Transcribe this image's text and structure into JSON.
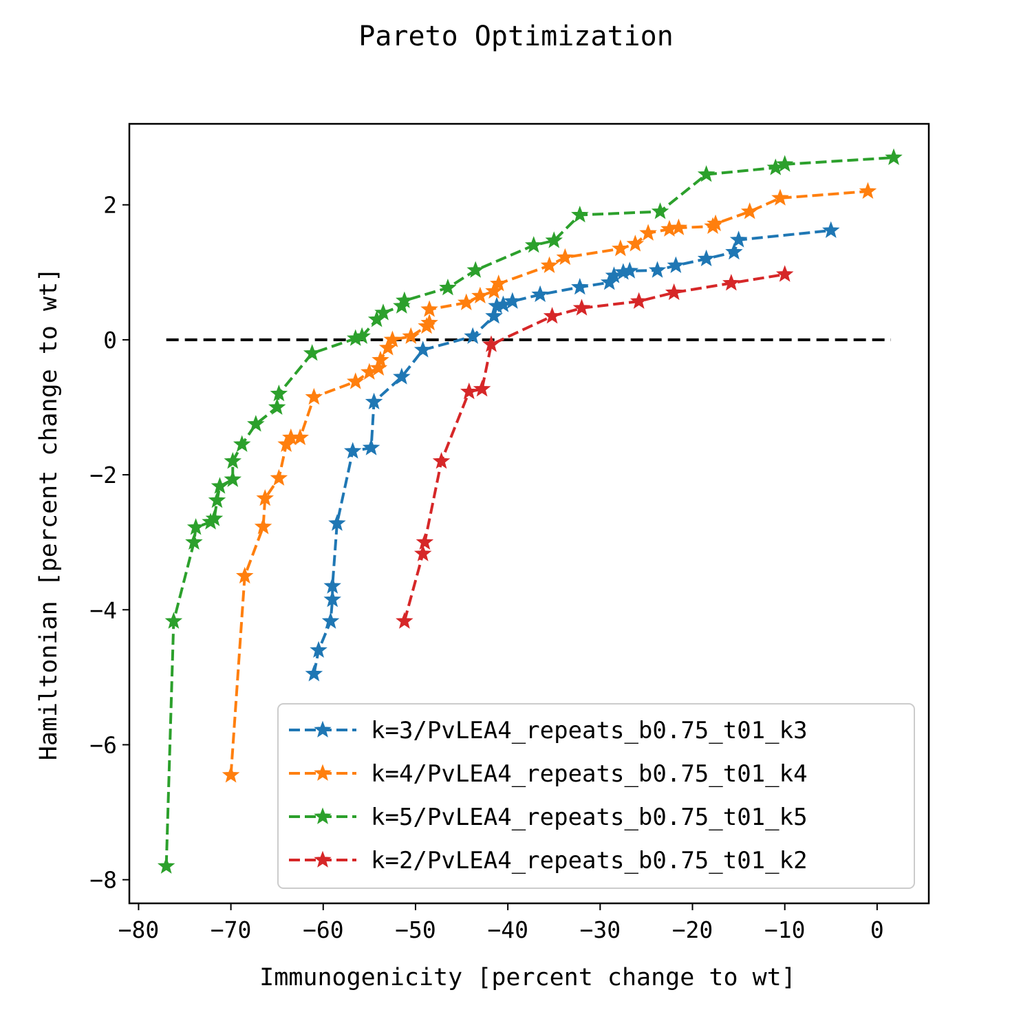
{
  "chart_data": {
    "type": "line",
    "title": "Pareto Optimization",
    "xlabel": "Immunogenicity [percent change to wt]",
    "ylabel": "Hamiltonian [percent change to wt]",
    "xlim": [
      -81,
      5.6
    ],
    "ylim": [
      -8.35,
      3.2
    ],
    "xticks": [
      -80,
      -70,
      -60,
      -50,
      -40,
      -30,
      -20,
      -10,
      0
    ],
    "yticks": [
      -8,
      -6,
      -4,
      -2,
      0,
      2
    ],
    "xtick_labels": [
      "−80",
      "−70",
      "−60",
      "−50",
      "−40",
      "−30",
      "−20",
      "−10",
      "0"
    ],
    "ytick_labels": [
      "−8",
      "−6",
      "−4",
      "−2",
      "0",
      "2"
    ],
    "grid": false,
    "legend_position": "lower-right",
    "reference_line": {
      "y": 0,
      "x_from": -77,
      "x_to": 1.5,
      "color": "#000000",
      "style": "dashed"
    },
    "series": [
      {
        "name": "k=3/PvLEA4_repeats_b0.75_t01_k3",
        "color": "#1f77b4",
        "points": [
          [
            -61.0,
            -4.95
          ],
          [
            -60.5,
            -4.6
          ],
          [
            -59.2,
            -4.17
          ],
          [
            -59.0,
            -3.85
          ],
          [
            -59.0,
            -3.65
          ],
          [
            -58.5,
            -2.72
          ],
          [
            -56.8,
            -1.65
          ],
          [
            -54.8,
            -1.6
          ],
          [
            -54.5,
            -0.92
          ],
          [
            -51.5,
            -0.55
          ],
          [
            -49.2,
            -0.15
          ],
          [
            -43.8,
            0.05
          ],
          [
            -41.5,
            0.35
          ],
          [
            -41.2,
            0.5
          ],
          [
            -40.5,
            0.52
          ],
          [
            -39.5,
            0.57
          ],
          [
            -36.5,
            0.67
          ],
          [
            -32.2,
            0.78
          ],
          [
            -29.0,
            0.85
          ],
          [
            -28.5,
            0.95
          ],
          [
            -27.5,
            1.0
          ],
          [
            -26.8,
            1.02
          ],
          [
            -23.8,
            1.03
          ],
          [
            -21.8,
            1.1
          ],
          [
            -18.5,
            1.2
          ],
          [
            -15.5,
            1.3
          ],
          [
            -15.0,
            1.48
          ],
          [
            -5.0,
            1.62
          ]
        ]
      },
      {
        "name": "k=4/PvLEA4_repeats_b0.75_t01_k4",
        "color": "#ff7f0e",
        "points": [
          [
            -70.0,
            -6.45
          ],
          [
            -68.5,
            -3.5
          ],
          [
            -66.5,
            -2.77
          ],
          [
            -66.3,
            -2.35
          ],
          [
            -64.8,
            -2.05
          ],
          [
            -64.0,
            -1.55
          ],
          [
            -63.5,
            -1.45
          ],
          [
            -62.5,
            -1.45
          ],
          [
            -61.0,
            -0.85
          ],
          [
            -56.5,
            -0.62
          ],
          [
            -55.0,
            -0.48
          ],
          [
            -54.0,
            -0.42
          ],
          [
            -53.8,
            -0.3
          ],
          [
            -53.0,
            -0.12
          ],
          [
            -52.5,
            0.0
          ],
          [
            -50.5,
            0.05
          ],
          [
            -48.8,
            0.2
          ],
          [
            -48.5,
            0.25
          ],
          [
            -48.5,
            0.45
          ],
          [
            -44.5,
            0.55
          ],
          [
            -43.0,
            0.65
          ],
          [
            -41.5,
            0.72
          ],
          [
            -41.0,
            0.83
          ],
          [
            -35.5,
            1.1
          ],
          [
            -33.8,
            1.22
          ],
          [
            -27.8,
            1.35
          ],
          [
            -26.2,
            1.42
          ],
          [
            -24.8,
            1.58
          ],
          [
            -22.5,
            1.64
          ],
          [
            -21.5,
            1.66
          ],
          [
            -17.8,
            1.68
          ],
          [
            -17.5,
            1.72
          ],
          [
            -13.8,
            1.9
          ],
          [
            -10.5,
            2.1
          ],
          [
            -1.0,
            2.2
          ]
        ]
      },
      {
        "name": "k=5/PvLEA4_repeats_b0.75_t01_k5",
        "color": "#2ca02c",
        "points": [
          [
            -77.0,
            -7.8
          ],
          [
            -76.2,
            -4.17
          ],
          [
            -74.0,
            -3.0
          ],
          [
            -73.8,
            -2.78
          ],
          [
            -72.2,
            -2.7
          ],
          [
            -71.8,
            -2.65
          ],
          [
            -71.5,
            -2.38
          ],
          [
            -71.2,
            -2.17
          ],
          [
            -69.8,
            -2.07
          ],
          [
            -69.8,
            -1.8
          ],
          [
            -68.8,
            -1.55
          ],
          [
            -67.3,
            -1.25
          ],
          [
            -65.0,
            -1.0
          ],
          [
            -64.8,
            -0.8
          ],
          [
            -61.2,
            -0.2
          ],
          [
            -56.5,
            0.02
          ],
          [
            -55.8,
            0.05
          ],
          [
            -54.2,
            0.3
          ],
          [
            -53.5,
            0.4
          ],
          [
            -51.5,
            0.5
          ],
          [
            -51.2,
            0.58
          ],
          [
            -46.5,
            0.77
          ],
          [
            -43.5,
            1.03
          ],
          [
            -37.2,
            1.4
          ],
          [
            -35.0,
            1.47
          ],
          [
            -32.2,
            1.85
          ],
          [
            -23.5,
            1.9
          ],
          [
            -18.5,
            2.45
          ],
          [
            -11.0,
            2.55
          ],
          [
            -10.0,
            2.6
          ],
          [
            1.8,
            2.7
          ]
        ]
      },
      {
        "name": "k=2/PvLEA4_repeats_b0.75_t01_k2",
        "color": "#d62728",
        "points": [
          [
            -51.2,
            -4.17
          ],
          [
            -49.2,
            -3.17
          ],
          [
            -49.0,
            -3.0
          ],
          [
            -47.2,
            -1.8
          ],
          [
            -44.2,
            -0.77
          ],
          [
            -42.8,
            -0.73
          ],
          [
            -41.8,
            -0.07
          ],
          [
            -35.2,
            0.35
          ],
          [
            -32.0,
            0.47
          ],
          [
            -25.8,
            0.57
          ],
          [
            -22.0,
            0.7
          ],
          [
            -15.8,
            0.84
          ],
          [
            -10.0,
            0.97
          ]
        ]
      }
    ]
  }
}
